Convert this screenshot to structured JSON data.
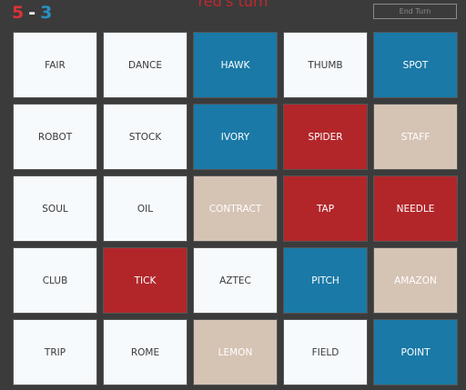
{
  "header": {
    "score": {
      "red": "5",
      "separator": "-",
      "blue": "3",
      "red_color": "#d9343a",
      "separator_color": "#ffffff",
      "blue_color": "#2a8fc4"
    },
    "turn": "red's turn",
    "turn_color": "#c8262c",
    "end_turn": "End Turn"
  },
  "board": {
    "cards": [
      {
        "word": "FAIR",
        "color": "#f7fafd",
        "text_color": "#3a3a3a"
      },
      {
        "word": "DANCE",
        "color": "#f7fafd",
        "text_color": "#3a3a3a"
      },
      {
        "word": "HAWK",
        "color": "#1a79a6",
        "text_color": "#ffffff"
      },
      {
        "word": "THUMB",
        "color": "#f7fafd",
        "text_color": "#3a3a3a"
      },
      {
        "word": "SPOT",
        "color": "#1a79a6",
        "text_color": "#ffffff"
      },
      {
        "word": "ROBOT",
        "color": "#f7fafd",
        "text_color": "#3a3a3a"
      },
      {
        "word": "STOCK",
        "color": "#f7fafd",
        "text_color": "#3a3a3a"
      },
      {
        "word": "IVORY",
        "color": "#1a79a6",
        "text_color": "#ffffff"
      },
      {
        "word": "SPIDER",
        "color": "#b2262a",
        "text_color": "#ffffff"
      },
      {
        "word": "STAFF",
        "color": "#d5c3b4",
        "text_color": "#ffffff"
      },
      {
        "word": "SOUL",
        "color": "#f7fafd",
        "text_color": "#3a3a3a"
      },
      {
        "word": "OIL",
        "color": "#f7fafd",
        "text_color": "#3a3a3a"
      },
      {
        "word": "CONTRACT",
        "color": "#d5c3b4",
        "text_color": "#ffffff"
      },
      {
        "word": "TAP",
        "color": "#b2262a",
        "text_color": "#ffffff"
      },
      {
        "word": "NEEDLE",
        "color": "#b2262a",
        "text_color": "#ffffff"
      },
      {
        "word": "CLUB",
        "color": "#f7fafd",
        "text_color": "#3a3a3a"
      },
      {
        "word": "TICK",
        "color": "#b2262a",
        "text_color": "#ffffff"
      },
      {
        "word": "AZTEC",
        "color": "#f7fafd",
        "text_color": "#3a3a3a"
      },
      {
        "word": "PITCH",
        "color": "#1a79a6",
        "text_color": "#ffffff"
      },
      {
        "word": "AMAZON",
        "color": "#d5c3b4",
        "text_color": "#ffffff"
      },
      {
        "word": "TRIP",
        "color": "#f7fafd",
        "text_color": "#3a3a3a"
      },
      {
        "word": "ROME",
        "color": "#f7fafd",
        "text_color": "#3a3a3a"
      },
      {
        "word": "LEMON",
        "color": "#d5c3b4",
        "text_color": "#ffffff"
      },
      {
        "word": "FIELD",
        "color": "#f7fafd",
        "text_color": "#3a3a3a"
      },
      {
        "word": "POINT",
        "color": "#1a79a6",
        "text_color": "#ffffff"
      }
    ]
  }
}
